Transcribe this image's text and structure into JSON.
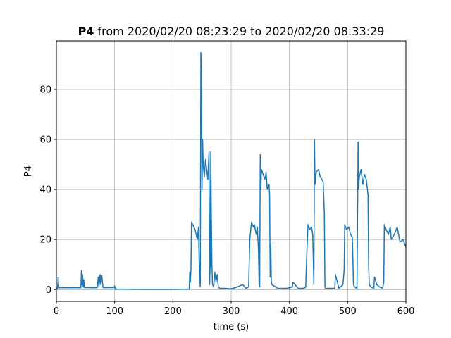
{
  "chart_data": {
    "type": "line",
    "title": [
      "P4",
      "from 2020/02/20 08:23:29 to 2020/02/20 08:33:29"
    ],
    "x_label": "time (s)",
    "y_label": "P4",
    "xlim": [
      0,
      600
    ],
    "xticks": [
      0,
      100,
      200,
      300,
      400,
      500,
      600
    ],
    "ylim": [
      -4.7,
      99.4
    ],
    "yticks": [
      0,
      20,
      40,
      60,
      80
    ],
    "grid": true,
    "series": [
      {
        "color": "#1f77b4",
        "x": [
          0,
          2,
          3,
          4,
          5,
          10,
          20,
          30,
          40,
          42,
          43,
          44,
          45,
          46,
          47,
          48,
          55,
          65,
          70,
          72,
          73,
          75,
          76,
          78,
          80,
          90,
          99,
          100,
          101,
          110,
          150,
          200,
          228,
          229,
          230,
          231,
          232,
          234,
          236,
          238,
          240,
          242,
          244,
          245,
          246,
          247,
          248,
          249,
          250,
          251,
          252,
          254,
          256,
          258,
          260,
          262,
          263,
          264,
          265,
          266,
          267,
          268,
          270,
          272,
          274,
          276,
          278,
          280,
          290,
          300,
          310,
          320,
          325,
          330,
          332,
          335,
          338,
          340,
          343,
          345,
          347,
          348,
          349,
          350,
          351,
          352,
          355,
          358,
          360,
          362,
          365,
          366,
          367,
          368,
          369,
          370,
          380,
          395,
          405,
          406,
          415,
          425,
          428,
          430,
          432,
          435,
          438,
          440,
          442,
          443,
          444,
          446,
          450,
          453,
          456,
          458,
          460,
          461,
          462,
          470,
          478,
          479,
          485,
          492,
          494,
          495,
          498,
          502,
          505,
          508,
          510,
          512,
          516,
          518,
          519,
          520,
          523,
          526,
          529,
          532,
          535,
          536,
          537,
          540,
          545,
          546,
          550,
          555,
          560,
          562,
          563,
          566,
          570,
          573,
          575,
          580,
          585,
          590,
          595,
          600
        ],
        "values": [
          0.5,
          0.5,
          5,
          1,
          0.7,
          0.8,
          0.7,
          0.8,
          0.7,
          0.7,
          7.5,
          2,
          6,
          1,
          4,
          0.8,
          0.8,
          0.7,
          0.8,
          5,
          1,
          6,
          2,
          5.5,
          0.8,
          0.8,
          0.8,
          1.5,
          0.2,
          0.2,
          0.1,
          0.1,
          0.2,
          7,
          3,
          8,
          27,
          26,
          25,
          24,
          22,
          20,
          25,
          12,
          5,
          1,
          94.7,
          85,
          40,
          60,
          50,
          45,
          52,
          48,
          44,
          55,
          2,
          10,
          55,
          30,
          10,
          2,
          1,
          7,
          3,
          6,
          1,
          0.5,
          0.5,
          0.3,
          1,
          2,
          0.5,
          1,
          20,
          27,
          25,
          26,
          22,
          25,
          15,
          2,
          1,
          54,
          40,
          48,
          46,
          44,
          47,
          40,
          42,
          38,
          5,
          18,
          3,
          2,
          0.5,
          0.5,
          1,
          3,
          0.5,
          0.5,
          1,
          15,
          26,
          24,
          25,
          22,
          2,
          60,
          42,
          47,
          48,
          45,
          44,
          43,
          30,
          1,
          0.5,
          0.5,
          0.5,
          6,
          0.5,
          2,
          8,
          26,
          24,
          25,
          22,
          21,
          2,
          1,
          0.5,
          59,
          40,
          45,
          48,
          42,
          46,
          44,
          38,
          10,
          2,
          1,
          0.5,
          5,
          2,
          1,
          0.5,
          3,
          26,
          24,
          22,
          25,
          20,
          22,
          25,
          19,
          20,
          17
        ]
      }
    ]
  }
}
